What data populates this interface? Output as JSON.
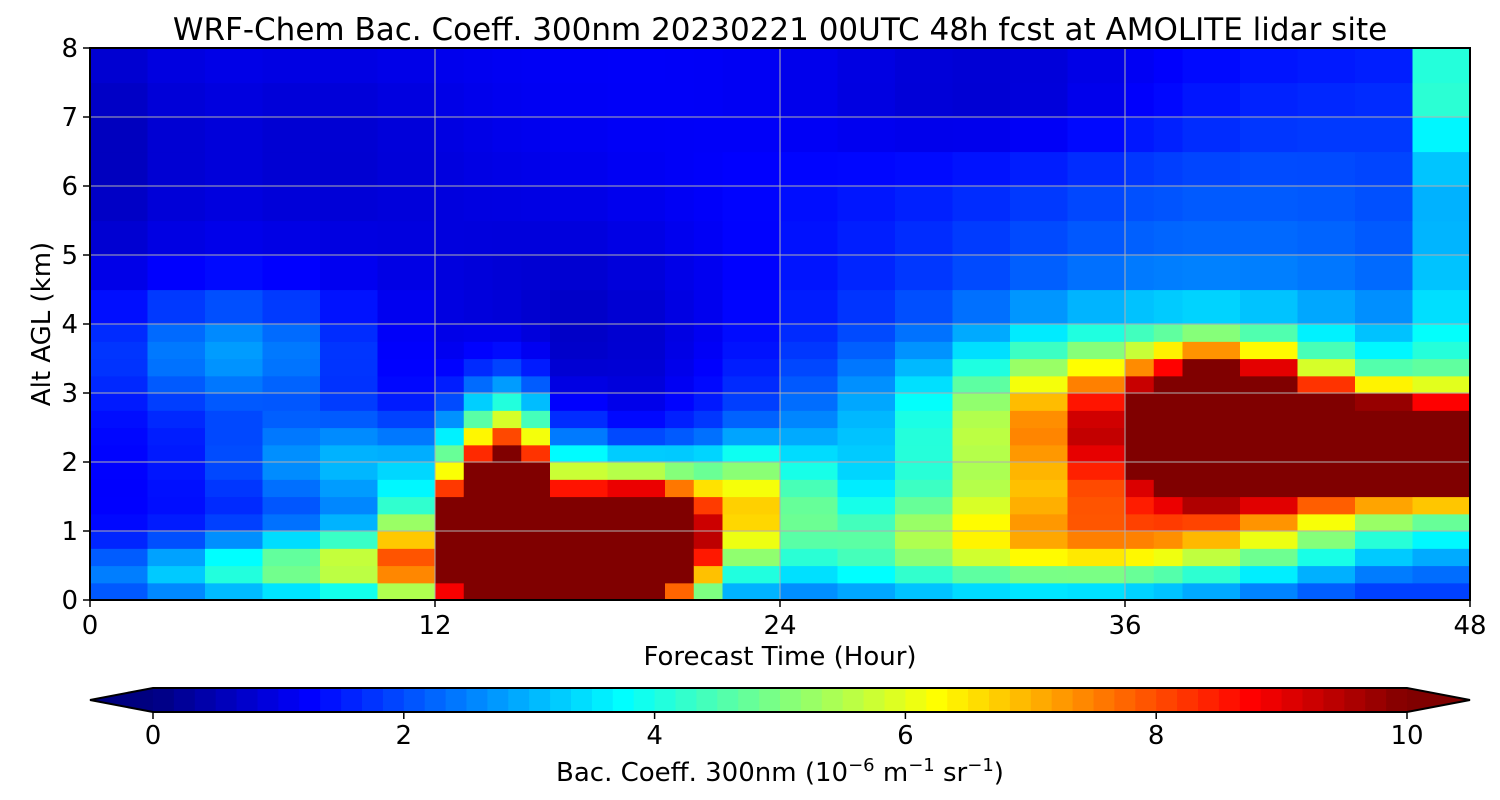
{
  "chart_data": {
    "type": "heatmap",
    "title": "WRF-Chem Bac. Coeff. 300nm  20230221 00UTC 48h fcst at AMOLITE lidar site",
    "xlabel": "Forecast Time (Hour)",
    "ylabel": "Alt AGL (km)",
    "xlim": [
      0,
      48
    ],
    "ylim": [
      0,
      8
    ],
    "xticks": [
      0,
      12,
      24,
      36,
      48
    ],
    "yticks": [
      0,
      1,
      2,
      3,
      4,
      5,
      6,
      7,
      8
    ],
    "grid": true,
    "colormap": "jet",
    "colorbar": {
      "label_main": "Bac. Coeff. 300nm  (10",
      "label_exp1": "−6",
      "label_mid": " m",
      "label_exp2": "−1",
      "label_mid2": " sr",
      "label_exp3": "−1",
      "label_end": ")",
      "range": [
        0,
        10
      ],
      "ticks": [
        0,
        2,
        4,
        6,
        8,
        10
      ],
      "extend": "both",
      "orientation": "horizontal"
    },
    "x": [
      0,
      2,
      4,
      6,
      8,
      10,
      12,
      13,
      14,
      15,
      16,
      18,
      20,
      21,
      22,
      24,
      26,
      28,
      30,
      32,
      34,
      36,
      37,
      38,
      40,
      42,
      44,
      46,
      48
    ],
    "y": [
      0,
      0.25,
      0.5,
      0.75,
      1,
      1.25,
      1.5,
      1.75,
      2,
      2.25,
      2.5,
      2.75,
      3,
      3.25,
      3.5,
      3.75,
      4,
      4.5,
      5,
      5.5,
      6,
      6.5,
      7,
      7.5,
      8
    ],
    "features": [
      {
        "x": 15.5,
        "y": 0.6,
        "sx": 2.6,
        "sy": 0.75,
        "amp": 12
      },
      {
        "x": 14.5,
        "y": 1.5,
        "sx": 1.2,
        "sy": 0.9,
        "amp": 10
      },
      {
        "x": 19,
        "y": 0.8,
        "sx": 1.6,
        "sy": 0.6,
        "amp": 11
      },
      {
        "x": 13,
        "y": 1.1,
        "sx": 1.0,
        "sy": 0.4,
        "amp": 4
      },
      {
        "x": 21,
        "y": 1.2,
        "sx": 2.0,
        "sy": 0.6,
        "amp": 3
      },
      {
        "x": 23.5,
        "y": 1.6,
        "sx": 1.4,
        "sy": 0.5,
        "amp": 2.5
      },
      {
        "x": 10,
        "y": 0.6,
        "sx": 4.0,
        "sy": 0.35,
        "amp": 3
      },
      {
        "x": 6,
        "y": 0.35,
        "sx": 5.0,
        "sy": 0.3,
        "amp": 1.8
      },
      {
        "x": 30,
        "y": 0.7,
        "sx": 7.0,
        "sy": 0.55,
        "amp": 2.6
      },
      {
        "x": 36,
        "y": 0.9,
        "sx": 5.0,
        "sy": 0.5,
        "amp": 2.2
      },
      {
        "x": 32,
        "y": 2.3,
        "sx": 6.0,
        "sy": 1.0,
        "amp": 2.2
      },
      {
        "x": 35,
        "y": 2.6,
        "sx": 3.0,
        "sy": 0.8,
        "amp": 3.2
      },
      {
        "x": 39.5,
        "y": 2.6,
        "sx": 1.8,
        "sy": 0.6,
        "amp": 12
      },
      {
        "x": 43,
        "y": 2.3,
        "sx": 3.0,
        "sy": 0.45,
        "amp": 11
      },
      {
        "x": 47,
        "y": 2.15,
        "sx": 1.8,
        "sy": 0.4,
        "amp": 10
      },
      {
        "x": 42,
        "y": 2.5,
        "sx": 6.0,
        "sy": 1.0,
        "amp": 3.5
      },
      {
        "x": 42,
        "y": 1.4,
        "sx": 6.0,
        "sy": 0.6,
        "amp": 2.0
      },
      {
        "x": 48,
        "y": 4.5,
        "sx": 0.6,
        "sy": 2.5,
        "amp": 4.2
      },
      {
        "x": 47.5,
        "y": 7.6,
        "sx": 0.9,
        "sy": 0.8,
        "amp": 2.6
      },
      {
        "x": 5,
        "y": 3.6,
        "sx": 3.0,
        "sy": 0.6,
        "amp": 1.6
      },
      {
        "x": 9,
        "y": 2.0,
        "sx": 3.0,
        "sy": 0.5,
        "amp": 1.8
      },
      {
        "x": 40,
        "y": 5.2,
        "sx": 9.0,
        "sy": 1.8,
        "amp": 1.0
      }
    ],
    "background": 1.2,
    "dark_regions": [
      {
        "x": 17,
        "y": 3.5,
        "sx": 4.0,
        "sy": 1.5,
        "amp": 0.6
      },
      {
        "x": 32,
        "y": 7.3,
        "sx": 5.0,
        "sy": 0.8,
        "amp": 0.7
      },
      {
        "x": 8,
        "y": 6.5,
        "sx": 4.0,
        "sy": 1.2,
        "amp": 0.4
      },
      {
        "x": 1,
        "y": 6.5,
        "sx": 1.5,
        "sy": 1.5,
        "amp": 0.5
      }
    ]
  },
  "colors": {
    "axis": "#000000",
    "grid": "#b0b0b0",
    "background": "#ffffff"
  }
}
